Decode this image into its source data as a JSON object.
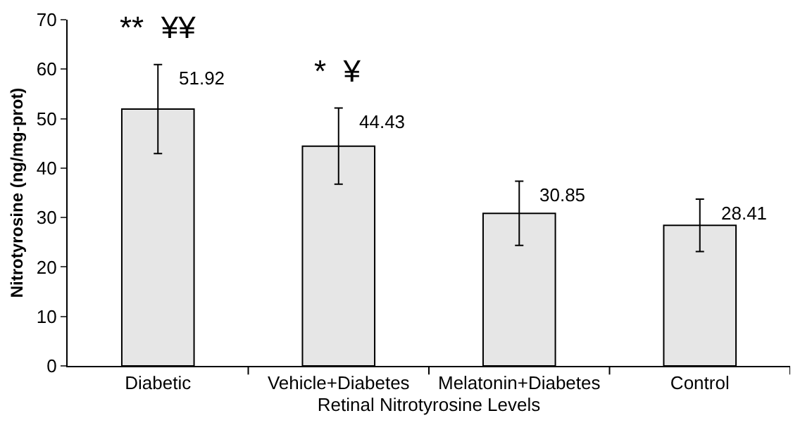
{
  "chart_data": {
    "type": "bar",
    "xlabel": "Retinal Nitrotyrosine Levels",
    "ylabel": "Nitrotyrosine (ng/mg-prot)",
    "categories": [
      "Diabetic",
      "Vehicle+Diabetes",
      "Melatonin+Diabetes",
      "Control"
    ],
    "values": [
      51.92,
      44.43,
      30.85,
      28.41
    ],
    "color": "#e6e6e6",
    "errors": [
      9,
      7.7,
      6.5,
      5.3
    ],
    "data_labels": true,
    "ylim": [
      0,
      70
    ],
    "yticks": [
      0,
      10,
      20,
      30,
      40,
      50,
      60,
      70
    ],
    "grid": false,
    "annotations": [
      "**  ¥¥",
      "*  ¥"
    ]
  }
}
